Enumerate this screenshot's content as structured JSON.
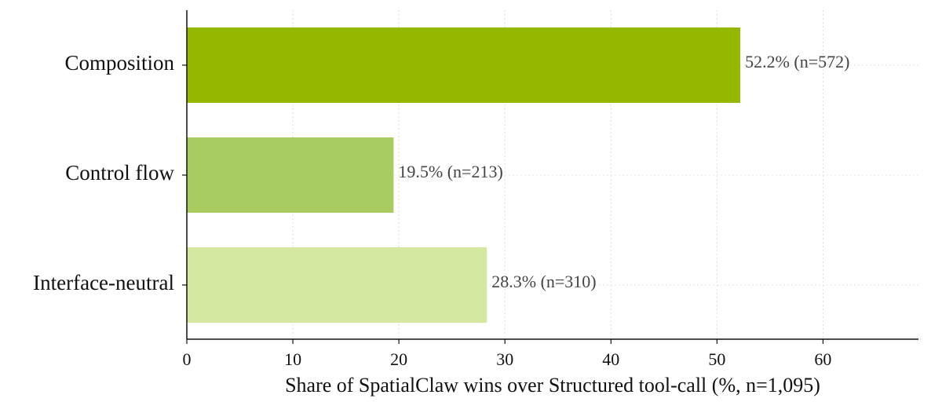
{
  "chart_data": {
    "type": "barh",
    "xlabel": "Share of SpatialClaw wins over Structured tool-call  (%, n=1,095)",
    "categories": [
      "Composition",
      "Control flow",
      "Interface-neutral"
    ],
    "values": [
      52.2,
      19.5,
      28.3
    ],
    "value_labels": [
      "52.2%  (n=572)",
      "19.5%  (n=213)",
      "28.3%  (n=310)"
    ],
    "colors": [
      "#94b800",
      "#a8cc60",
      "#d4e8a0"
    ],
    "xlim": [
      0,
      69
    ],
    "xticks": [
      0,
      10,
      20,
      30,
      40,
      50,
      60
    ],
    "grid": true
  }
}
